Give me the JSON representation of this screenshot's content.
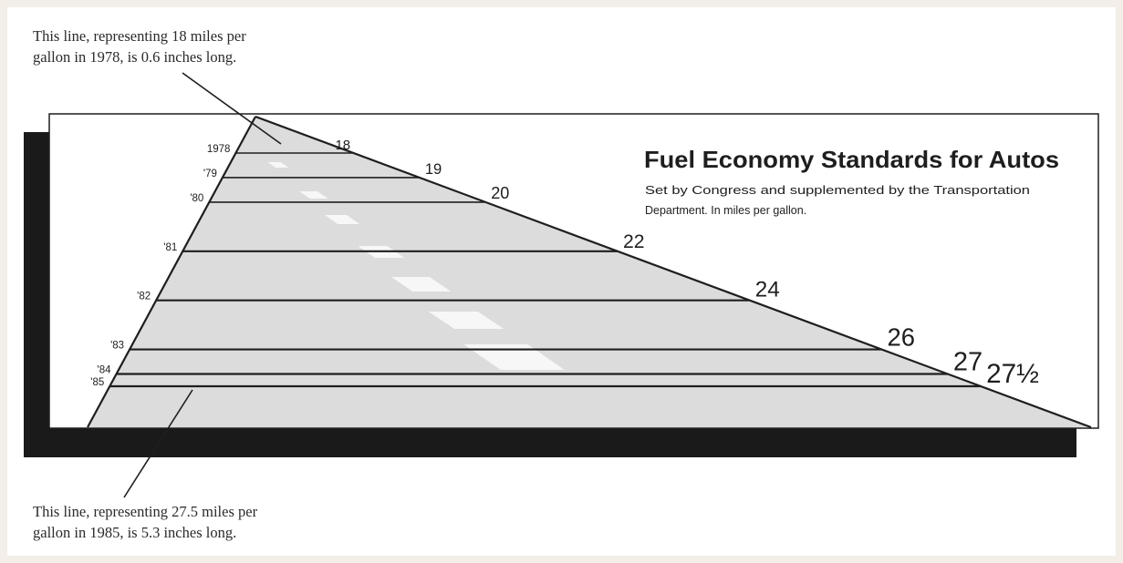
{
  "annotations": {
    "top": "This line, representing 18 miles per\ngallon in 1978, is 0.6 inches long.",
    "bottom": "This line, representing 27.5 miles per\ngallon in 1985, is 5.3 inches long."
  },
  "chart_data": {
    "type": "bar",
    "title": "Fuel Economy Standards for Autos",
    "subtitle": "Set by Congress and supplemented by the Transportation Department. In miles per gallon.",
    "categories": [
      "1978",
      "'79",
      "'80",
      "'81",
      "'82",
      "'83",
      "'84",
      "'85"
    ],
    "values": [
      18,
      19,
      20,
      22,
      24,
      26,
      27,
      27.5
    ],
    "value_labels": [
      "18",
      "19",
      "20",
      "22",
      "24",
      "26",
      "27",
      "27½"
    ]
  },
  "colors": {
    "ink": "#1e1e1e",
    "road": "#dcdcdc",
    "shadow": "#1a1a1a",
    "paper": "#ffffff"
  }
}
